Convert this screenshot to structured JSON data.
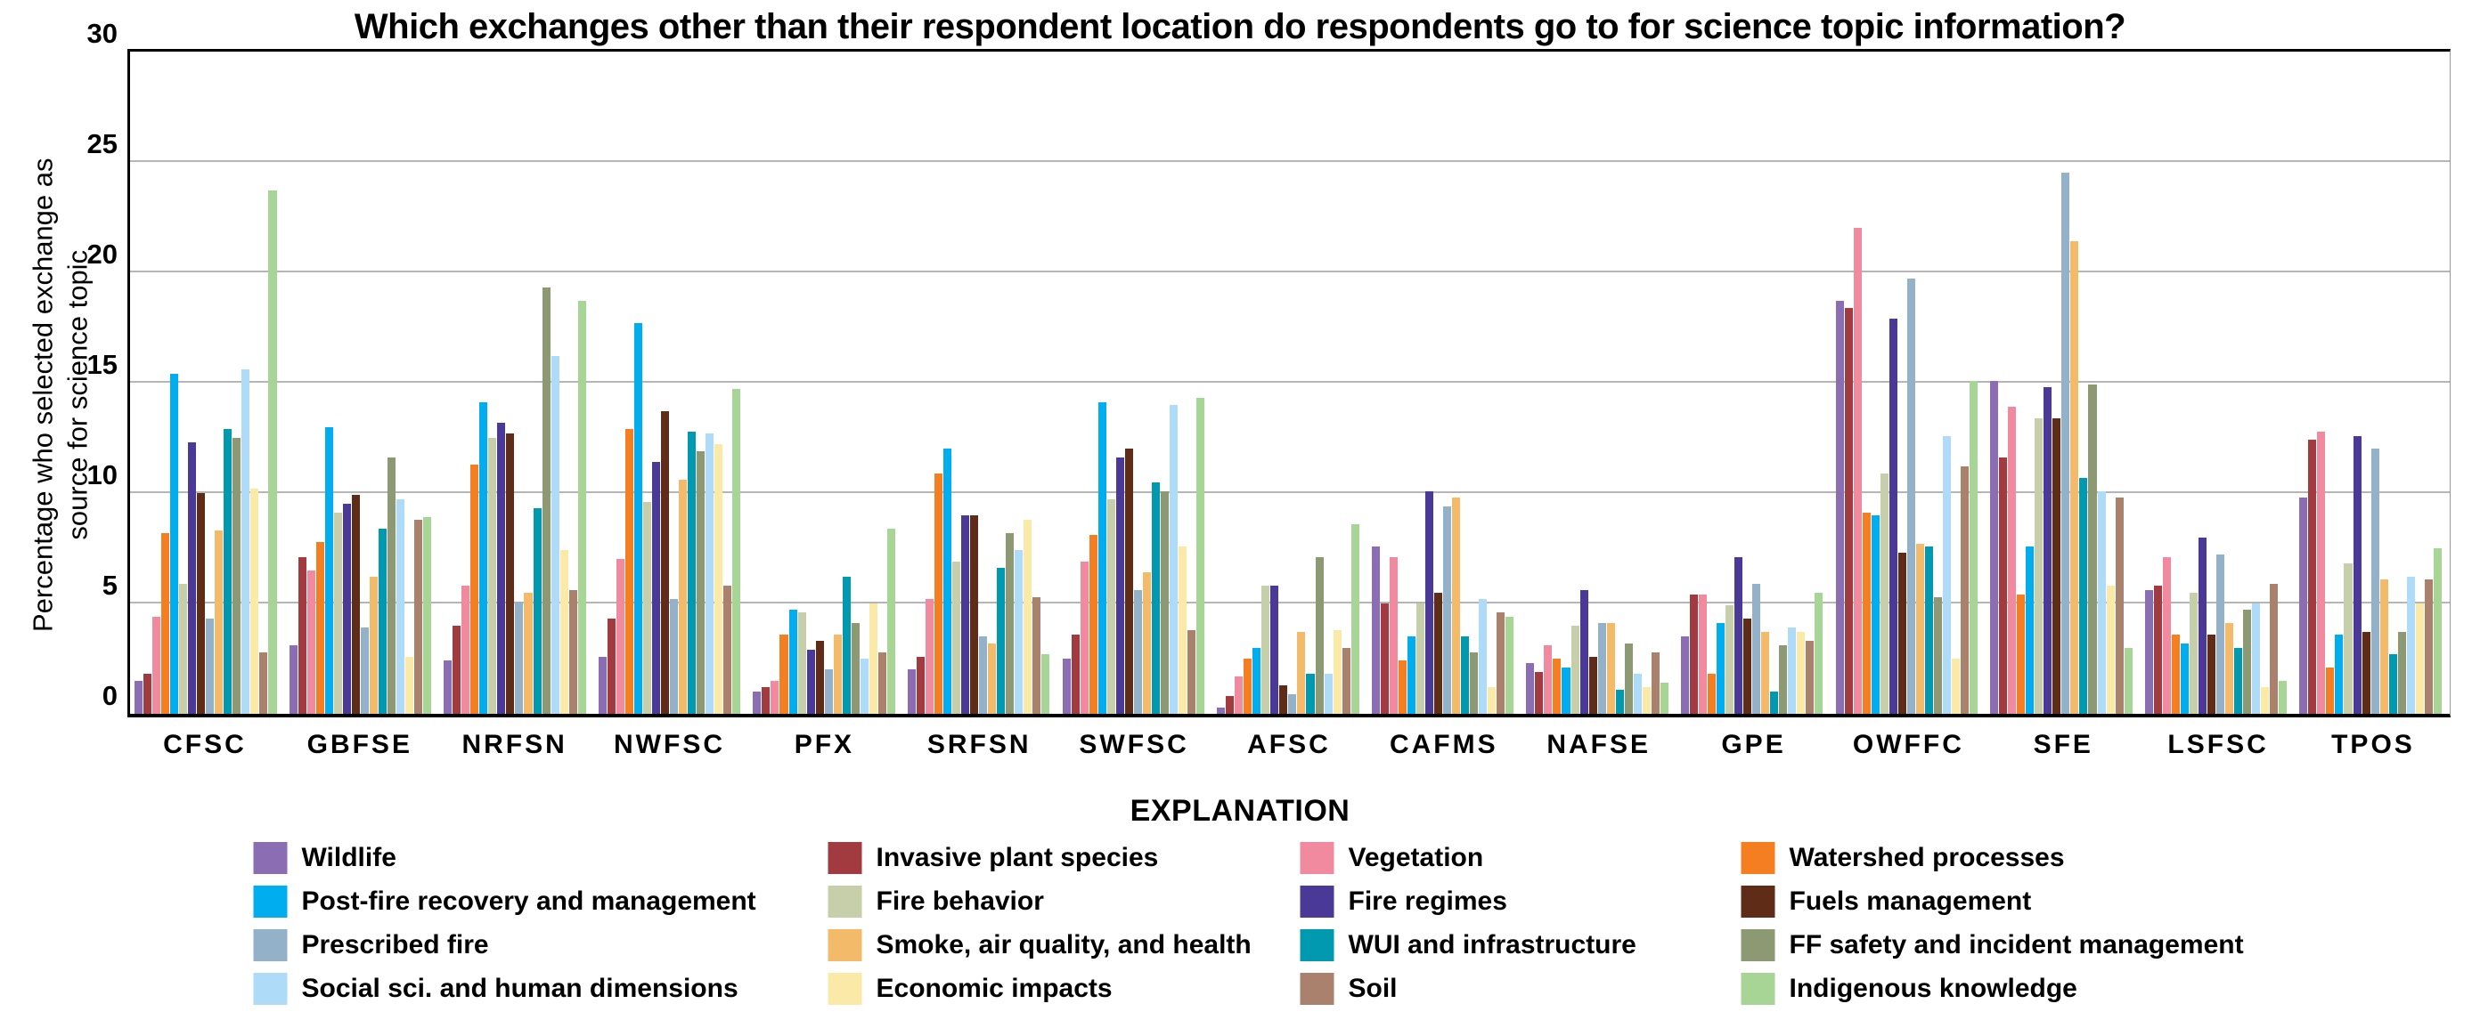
{
  "title": "Which exchanges other than their respondent location do respondents go to for science topic information?",
  "y_axis": {
    "label_line1": "Percentage who selected exchange as",
    "label_line2": "source for science topic"
  },
  "legend_heading": "EXPLANATION",
  "chart_data": {
    "type": "bar",
    "title": "Which exchanges other than their respondent location do respondents go to for science topic information?",
    "xlabel": "",
    "ylabel": "Percentage who selected exchange as source for science topic",
    "ylim": [
      0,
      30
    ],
    "yticks": [
      0,
      5,
      10,
      15,
      20,
      25,
      30
    ],
    "grid": true,
    "legend_position": "bottom",
    "categories": [
      "CFSC",
      "GBFSE",
      "NRFSN",
      "NWFSC",
      "PFX",
      "SRFSN",
      "SWFSC",
      "AFSC",
      "CAFMS",
      "NAFSE",
      "GPE",
      "OWFFC",
      "SFE",
      "LSFSC",
      "TPOS"
    ],
    "series": [
      {
        "name": "Wildlife",
        "color": "#8b6db3",
        "values": [
          1.5,
          3.1,
          2.4,
          2.6,
          1.0,
          2.0,
          2.5,
          0.3,
          7.6,
          2.3,
          3.5,
          18.7,
          15.1,
          5.6,
          9.8
        ]
      },
      {
        "name": "Invasive plant species",
        "color": "#a23b40",
        "values": [
          1.8,
          7.1,
          4.0,
          4.3,
          1.2,
          2.6,
          3.6,
          0.8,
          5.0,
          1.9,
          5.4,
          18.4,
          11.6,
          5.8,
          12.4
        ]
      },
      {
        "name": "Vegetation",
        "color": "#f28a9f",
        "values": [
          4.4,
          6.5,
          5.8,
          7.0,
          1.5,
          5.2,
          6.9,
          1.7,
          7.1,
          3.1,
          5.4,
          22.0,
          13.9,
          7.1,
          12.8
        ]
      },
      {
        "name": "Watershed processes",
        "color": "#f57e20",
        "values": [
          8.2,
          7.8,
          11.3,
          12.9,
          3.6,
          10.9,
          8.1,
          2.5,
          2.4,
          2.5,
          1.8,
          9.1,
          5.4,
          3.6,
          2.1
        ]
      },
      {
        "name": "Post-fire recovery and management",
        "color": "#00aeef",
        "values": [
          15.4,
          13.0,
          14.1,
          17.7,
          4.7,
          12.0,
          14.1,
          3.0,
          3.5,
          2.1,
          4.1,
          9.0,
          7.6,
          3.2,
          3.6
        ]
      },
      {
        "name": "Fire behavior",
        "color": "#c7ceaa",
        "values": [
          5.9,
          9.1,
          12.5,
          9.6,
          4.6,
          6.9,
          9.7,
          5.8,
          5.0,
          4.0,
          4.9,
          10.9,
          13.4,
          5.5,
          6.8
        ]
      },
      {
        "name": "Fire regimes",
        "color": "#4b3997",
        "values": [
          12.3,
          9.5,
          13.2,
          11.4,
          2.9,
          9.0,
          11.6,
          5.8,
          10.1,
          5.6,
          7.1,
          17.9,
          14.8,
          8.0,
          12.6
        ]
      },
      {
        "name": "Fuels management",
        "color": "#5f2d17",
        "values": [
          10.0,
          9.9,
          12.7,
          13.7,
          3.3,
          9.0,
          12.0,
          1.3,
          5.5,
          2.6,
          4.3,
          7.3,
          13.4,
          3.6,
          3.7
        ]
      },
      {
        "name": "Prescribed fire",
        "color": "#93b1c9",
        "values": [
          4.3,
          3.9,
          5.1,
          5.2,
          2.0,
          3.5,
          5.6,
          0.9,
          9.4,
          4.1,
          5.9,
          19.7,
          24.5,
          7.2,
          12.0
        ]
      },
      {
        "name": "Smoke, air quality, and health",
        "color": "#f3ba6a",
        "values": [
          8.3,
          6.2,
          5.5,
          10.6,
          3.6,
          3.2,
          6.4,
          3.7,
          9.8,
          4.1,
          3.7,
          7.7,
          21.4,
          4.1,
          6.1
        ]
      },
      {
        "name": "WUI and infrastructure",
        "color": "#0099b0",
        "values": [
          12.9,
          8.4,
          9.3,
          12.8,
          6.2,
          6.6,
          10.5,
          1.8,
          3.5,
          1.1,
          1.0,
          7.6,
          10.7,
          3.0,
          2.7
        ]
      },
      {
        "name": "FF safety and incident management",
        "color": "#8c9973",
        "values": [
          12.5,
          11.6,
          19.3,
          11.9,
          4.1,
          8.2,
          10.1,
          7.1,
          2.8,
          3.2,
          3.1,
          5.3,
          14.9,
          4.7,
          3.7
        ]
      },
      {
        "name": "Social sci. and human dimensions",
        "color": "#aedcf8",
        "values": [
          15.6,
          9.7,
          16.2,
          12.7,
          2.5,
          7.4,
          14.0,
          1.8,
          5.2,
          1.8,
          3.9,
          12.6,
          10.1,
          5.0,
          6.2
        ]
      },
      {
        "name": "Economic impacts",
        "color": "#fae9a7",
        "values": [
          10.2,
          2.6,
          7.4,
          12.2,
          5.0,
          8.8,
          7.6,
          3.8,
          1.2,
          1.2,
          3.7,
          2.5,
          5.8,
          1.2,
          5.0
        ]
      },
      {
        "name": "Soil",
        "color": "#a9816c",
        "values": [
          2.8,
          8.8,
          5.6,
          5.8,
          2.8,
          5.3,
          3.8,
          3.0,
          4.6,
          2.8,
          3.3,
          11.2,
          9.8,
          5.9,
          6.1
        ]
      },
      {
        "name": "Indigenous knowledge",
        "color": "#a6d595",
        "values": [
          23.7,
          8.9,
          18.7,
          14.7,
          8.4,
          2.7,
          14.3,
          8.6,
          4.4,
          1.4,
          5.5,
          15.1,
          3.0,
          1.5,
          7.5
        ]
      }
    ]
  }
}
